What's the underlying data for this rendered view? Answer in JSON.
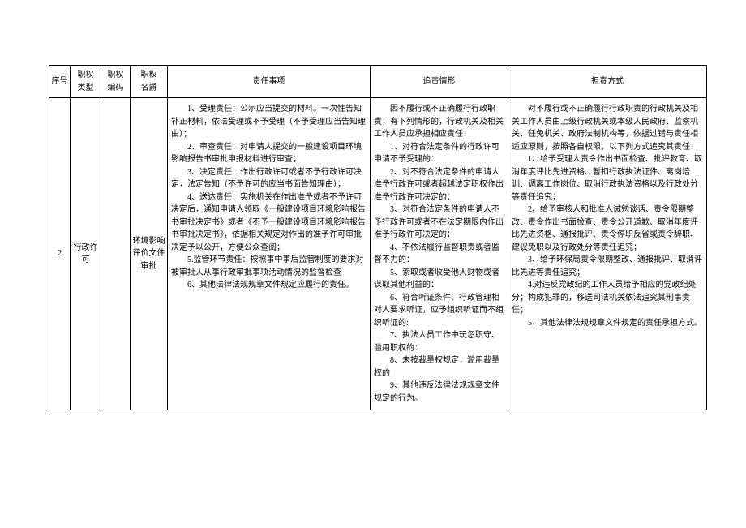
{
  "header": {
    "seq": "序号",
    "type": "职权\n类型",
    "code": "职权\n编码",
    "name": "职权\n名爵",
    "duty": "责任事项",
    "accountability": "追责情形",
    "way": "担责方式"
  },
  "row": {
    "seq": "2",
    "type": "行政许可",
    "code": "",
    "name": "环境影响评价文件审批",
    "duty": [
      "1、受理责任：公示应当提交的材料。一次性告知补正材料，依法受理或不予受理（不予受理应当告知理由）；",
      "2、审查责任：对申请人提交的一般建设项目环境影响报告书审批申报材料进行审查；",
      "3、决定责任：作出行政许可或者不予行政许可决定，法定告知（不予许可的应当书面告知理由）；",
      "4、送达责任：实施机关在作出准予或者不予许可决定后，通知申请人领取《一般建设项目环境影响报告书审批决定书》或者《不予一般建设项目环境影响报告书审批决定书》，依据相关规定对作出的准予许可审批决定予以公开，方便公众查阅；",
      "5.监管环节责任：按照事中事后监管制度的要求对被审批人从事行政审批事项活动情况的监督检查",
      "6、其他法律法规规章文件规定应履行的责任。"
    ],
    "acc": [
      "因不履行或不正确履行行政职责，有下列情形的，行政机关及相关工作人员应承担相应责任：",
      "1、对符合法定条件的行政许可申请不予受理的：",
      "2、对不符合法定条件的申请人准予行政许可或者超越法定职权作出准予行政许可决定的：",
      "3、对符合法定条件的申请人不予行政许可或者不在法定期限内作出准予行政许可决定的：",
      "4、不依法履行监督职责或者监督不力的：",
      "5、索取或者收受他人财物或者谋取其他利益的：",
      "6、符合听证条件、行政管理相对人要求听证，应予组织听证而不组织听证的:",
      "7、执法人员工作中玩忽职守、滥用职权的：",
      "8、未按裁量权规定，滥用裁量权的",
      "9、其他违反法律法规规章文件规定的行为。"
    ],
    "way": [
      "对不履行或不正确履行行政职责的行政机关及相关工作人员由上级行政机关或本级人民政府、监察机关、任免机关、政府法制机构等，依据过错与责任相适应原则，按照各自权限，以下列方式追究其责任：",
      "1、给予受理人责令作出书面检查、批评教育、取消年度评比先进资格、暂扣行政执法证件、离岗培训、调离工作岗位、取消行政执法资格以及行政处分等责任追究；",
      "2、给予审核人和批准人诫勉谈话、责令限期整改、责令作出书面检查、责令公开道歉、取消年度评比先进资格、通报批评、责令停职反省或责令辞职、建议免职以及行政处分等责任追究；",
      "3、给予环保局责令限期整改、通报批评、取消评比先进等责任追究；",
      "4.对违反党政纪的工作人员给予相应的党政纪处分；构成犯罪的，移送司法机关依法追究其刑事责任；",
      "5、其他法律法规规章文件规定的责任承担方式。"
    ]
  }
}
